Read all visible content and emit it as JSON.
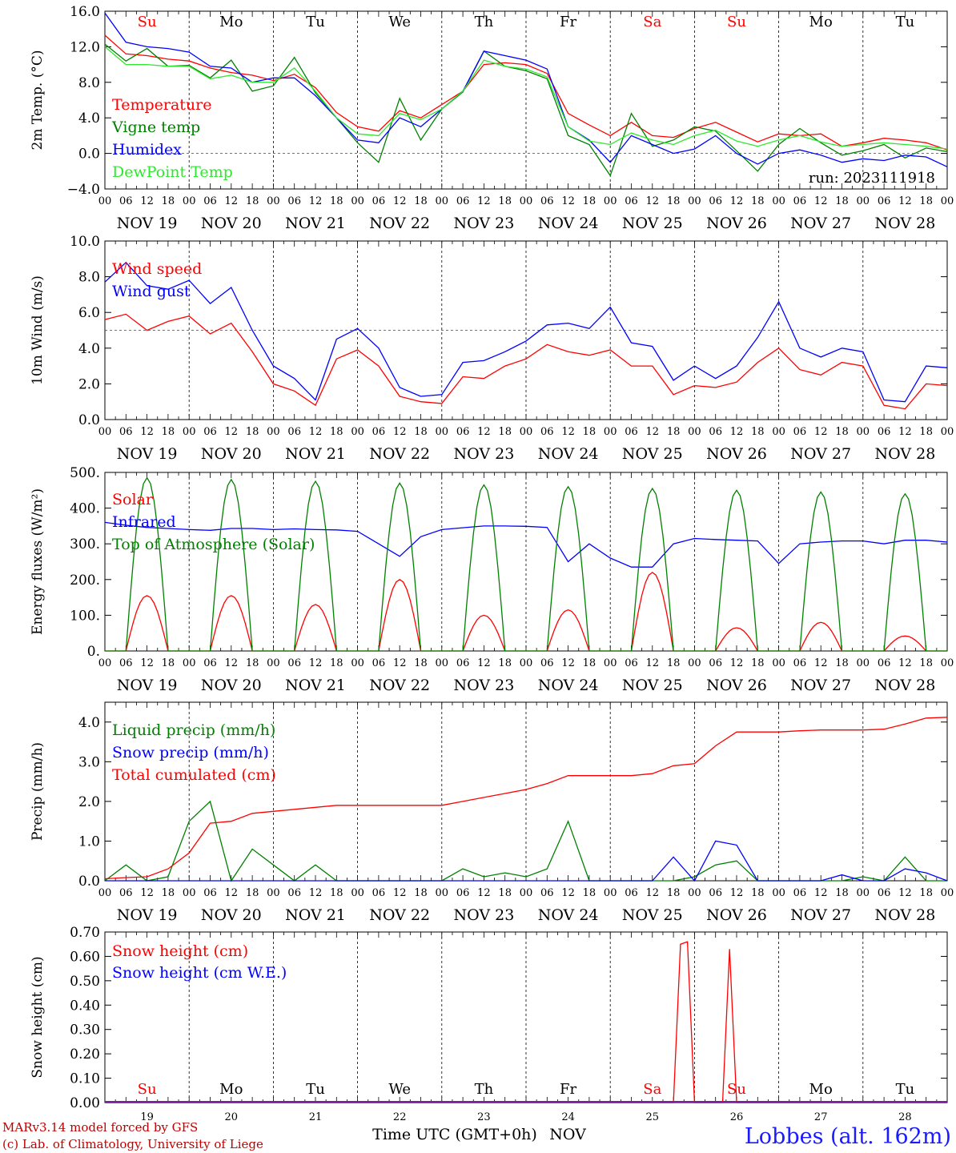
{
  "colors": {
    "red": "#ff0000",
    "green": "#008000",
    "blue": "#0000ff",
    "lightgreen": "#2ee82e",
    "purple": "#7a1fa2"
  },
  "days": [
    {
      "abbr": "Su",
      "date": "NOV 19",
      "num": "19",
      "weekend": true
    },
    {
      "abbr": "Mo",
      "date": "NOV 20",
      "num": "20",
      "weekend": false
    },
    {
      "abbr": "Tu",
      "date": "NOV 21",
      "num": "21",
      "weekend": false
    },
    {
      "abbr": "We",
      "date": "NOV 22",
      "num": "22",
      "weekend": false
    },
    {
      "abbr": "Th",
      "date": "NOV 23",
      "num": "23",
      "weekend": false
    },
    {
      "abbr": "Fr",
      "date": "NOV 24",
      "num": "24",
      "weekend": false
    },
    {
      "abbr": "Sa",
      "date": "NOV 25",
      "num": "25",
      "weekend": true
    },
    {
      "abbr": "Su",
      "date": "NOV 26",
      "num": "26",
      "weekend": true
    },
    {
      "abbr": "Mo",
      "date": "NOV 27",
      "num": "27",
      "weekend": false
    },
    {
      "abbr": "Tu",
      "date": "NOV 28",
      "num": "28",
      "weekend": false
    }
  ],
  "hour_labels": [
    "00",
    "06",
    "12",
    "18"
  ],
  "hour_end_label": "00",
  "x_title": "Time UTC (GMT+0h)",
  "x_month": "NOV",
  "station": "Lobbes (alt. 162m)",
  "run_label": "run: 2023111918",
  "footer": [
    "MARv3.14 model forced by GFS",
    "(c) Lab. of Climatology, University of Liege"
  ],
  "chart_data": [
    {
      "id": "temp",
      "type": "line",
      "ylabel": "2m Temp. (°C)",
      "ylim": [
        -4,
        16
      ],
      "yticks": [
        -4,
        0,
        4,
        8,
        12,
        16
      ],
      "ytick_labels": [
        "−4.0",
        "0.0",
        "4.0",
        "8.0",
        "12.0",
        "16.0"
      ],
      "hline": 0,
      "x_hours": [
        0,
        6,
        12,
        18,
        24,
        30,
        36,
        42,
        48,
        54,
        60,
        66,
        72,
        78,
        84,
        90,
        96,
        102,
        108,
        114,
        120,
        126,
        132,
        138,
        144,
        150,
        156,
        162,
        168,
        174,
        180,
        186,
        192,
        198,
        204,
        210,
        216,
        222,
        228,
        234,
        240
      ],
      "series": [
        {
          "name": "Temperature",
          "color": "#ff0000",
          "values": [
            13.3,
            11.2,
            11.0,
            10.6,
            10.4,
            9.6,
            9.1,
            8.8,
            8.2,
            8.9,
            7.4,
            4.6,
            3.0,
            2.5,
            4.8,
            4.0,
            5.5,
            7.0,
            10.0,
            10.2,
            10.0,
            9.0,
            4.5,
            3.2,
            2.0,
            3.5,
            2.0,
            1.8,
            2.8,
            3.5,
            2.4,
            1.3,
            2.2,
            2.0,
            2.2,
            0.8,
            1.2,
            1.7,
            1.5,
            1.2,
            0.4
          ]
        },
        {
          "name": "Vigne temp",
          "color": "#008000",
          "values": [
            12.3,
            10.4,
            11.8,
            9.8,
            9.9,
            8.5,
            10.5,
            7.0,
            7.6,
            10.8,
            6.8,
            4.0,
            1.2,
            -1.0,
            6.2,
            1.5,
            5.0,
            6.9,
            11.5,
            9.8,
            9.3,
            8.4,
            2.0,
            1.0,
            -2.5,
            4.5,
            0.8,
            1.5,
            3.0,
            2.5,
            0.3,
            -2.0,
            1.0,
            2.8,
            1.2,
            -0.2,
            0.3,
            1.0,
            -0.5,
            0.6,
            0.2
          ]
        },
        {
          "name": "Humidex",
          "color": "#0000ff",
          "values": [
            15.8,
            12.5,
            12.0,
            11.8,
            11.4,
            9.8,
            9.6,
            8.0,
            8.5,
            8.5,
            6.5,
            4.0,
            1.5,
            1.2,
            4.0,
            3.0,
            5.0,
            7.0,
            11.5,
            11.0,
            10.5,
            9.5,
            3.0,
            1.5,
            -1.0,
            2.0,
            1.0,
            0.0,
            0.5,
            2.0,
            0.0,
            -1.2,
            0.0,
            0.4,
            -0.2,
            -1.0,
            -0.6,
            -0.8,
            -0.2,
            -0.4,
            -1.5
          ]
        },
        {
          "name": "DewPoint Temp",
          "color": "#2ee82e",
          "values": [
            12.0,
            10.0,
            10.0,
            9.8,
            9.8,
            8.4,
            8.8,
            8.0,
            8.0,
            9.6,
            7.0,
            4.0,
            2.2,
            2.0,
            4.5,
            3.8,
            5.0,
            7.0,
            10.5,
            9.8,
            9.5,
            8.6,
            3.0,
            1.4,
            1.0,
            2.3,
            1.5,
            1.0,
            2.0,
            2.6,
            1.4,
            0.8,
            1.5,
            2.0,
            1.3,
            0.8,
            1.0,
            1.2,
            1.0,
            0.8,
            0.5
          ]
        }
      ]
    },
    {
      "id": "wind",
      "type": "line",
      "ylabel": "10m Wind (m/s)",
      "ylim": [
        0,
        10
      ],
      "yticks": [
        0,
        2,
        4,
        6,
        8,
        10
      ],
      "ytick_labels": [
        "0.0",
        "2.0",
        "4.0",
        "6.0",
        "8.0",
        "10.0"
      ],
      "hline": 5,
      "x_hours": [
        0,
        6,
        12,
        18,
        24,
        30,
        36,
        42,
        48,
        54,
        60,
        66,
        72,
        78,
        84,
        90,
        96,
        102,
        108,
        114,
        120,
        126,
        132,
        138,
        144,
        150,
        156,
        162,
        168,
        174,
        180,
        186,
        192,
        198,
        204,
        210,
        216,
        222,
        228,
        234,
        240
      ],
      "series": [
        {
          "name": "Wind speed",
          "color": "#ff0000",
          "values": [
            5.6,
            5.9,
            5.0,
            5.5,
            5.8,
            4.8,
            5.4,
            3.8,
            2.0,
            1.6,
            0.8,
            3.4,
            3.9,
            3.0,
            1.3,
            1.0,
            0.9,
            2.4,
            2.3,
            3.0,
            3.4,
            4.2,
            3.8,
            3.6,
            3.9,
            3.0,
            3.0,
            1.4,
            1.9,
            1.8,
            2.1,
            3.2,
            4.0,
            2.8,
            2.5,
            3.2,
            3.0,
            0.8,
            0.6,
            2.0,
            1.9
          ]
        },
        {
          "name": "Wind gust",
          "color": "#0000ff",
          "values": [
            7.7,
            8.8,
            7.5,
            7.3,
            7.8,
            6.5,
            7.4,
            5.0,
            3.0,
            2.3,
            1.1,
            4.5,
            5.1,
            4.0,
            1.8,
            1.3,
            1.4,
            3.2,
            3.3,
            3.8,
            4.4,
            5.3,
            5.4,
            5.1,
            6.3,
            4.3,
            4.1,
            2.2,
            3.0,
            2.3,
            3.0,
            4.6,
            6.6,
            4.0,
            3.5,
            4.0,
            3.8,
            1.1,
            1.0,
            3.0,
            2.9
          ]
        }
      ]
    },
    {
      "id": "energy",
      "type": "line",
      "ylabel": "Energy fluxes (W/m²)",
      "ylim": [
        0,
        500
      ],
      "yticks": [
        0,
        100,
        200,
        300,
        400,
        500
      ],
      "ytick_labels": [
        "0.",
        "100.",
        "200.",
        "300.",
        "400.",
        "500."
      ],
      "x_hours": [
        0,
        6,
        12,
        18,
        24,
        30,
        36,
        42,
        48,
        54,
        60,
        66,
        72,
        78,
        84,
        90,
        96,
        102,
        108,
        114,
        120,
        126,
        132,
        138,
        144,
        150,
        156,
        162,
        168,
        174,
        180,
        186,
        192,
        198,
        204,
        210,
        216,
        222,
        228,
        234,
        240
      ],
      "series": [
        {
          "name": "Solar",
          "color": "#ff0000",
          "peaks": [
            {
              "h": 12,
              "v": 155
            },
            {
              "h": 36,
              "v": 155
            },
            {
              "h": 60,
              "v": 130
            },
            {
              "h": 84,
              "v": 200
            },
            {
              "h": 108,
              "v": 100
            },
            {
              "h": 132,
              "v": 115
            },
            {
              "h": 156,
              "v": 220
            },
            {
              "h": 180,
              "v": 65
            },
            {
              "h": 204,
              "v": 80
            },
            {
              "h": 228,
              "v": 42
            }
          ]
        },
        {
          "name": "Infrared",
          "color": "#0000ff",
          "values": [
            360,
            352,
            346,
            343,
            340,
            338,
            343,
            343,
            340,
            342,
            340,
            339,
            335,
            300,
            265,
            320,
            340,
            345,
            350,
            350,
            349,
            346,
            250,
            300,
            260,
            235,
            235,
            300,
            315,
            312,
            310,
            308,
            245,
            300,
            305,
            308,
            308,
            300,
            310,
            310,
            305
          ]
        },
        {
          "name": "Top of Atmosphere (Solar)",
          "color": "#008000",
          "peaks": [
            {
              "h": 12,
              "v": 485
            },
            {
              "h": 36,
              "v": 480
            },
            {
              "h": 60,
              "v": 475
            },
            {
              "h": 84,
              "v": 470
            },
            {
              "h": 108,
              "v": 465
            },
            {
              "h": 132,
              "v": 460
            },
            {
              "h": 156,
              "v": 455
            },
            {
              "h": 180,
              "v": 450
            },
            {
              "h": 204,
              "v": 445
            },
            {
              "h": 228,
              "v": 440
            }
          ]
        }
      ]
    },
    {
      "id": "precip",
      "type": "line",
      "ylabel": "Precip (mm/h)",
      "ylim": [
        0,
        4.5
      ],
      "yticks": [
        0,
        1,
        2,
        3,
        4
      ],
      "ytick_labels": [
        "0.0",
        "1.0",
        "2.0",
        "3.0",
        "4.0"
      ],
      "x_hours": [
        0,
        6,
        12,
        18,
        24,
        30,
        36,
        42,
        48,
        54,
        60,
        66,
        72,
        78,
        84,
        90,
        96,
        102,
        108,
        114,
        120,
        126,
        132,
        138,
        144,
        150,
        156,
        162,
        168,
        174,
        180,
        186,
        192,
        198,
        204,
        210,
        216,
        222,
        228,
        234,
        240
      ],
      "series": [
        {
          "name": "Liquid precip (mm/h)",
          "color": "#008000",
          "values": [
            0,
            0.4,
            0,
            0.1,
            1.5,
            2.0,
            0,
            0.8,
            0.4,
            0,
            0.4,
            0,
            0,
            0,
            0,
            0,
            0,
            0.3,
            0.1,
            0.2,
            0.1,
            0.3,
            1.5,
            0,
            0,
            0,
            0,
            0,
            0.1,
            0.4,
            0.5,
            0,
            0,
            0,
            0,
            0,
            0.1,
            0,
            0.6,
            0,
            0
          ]
        },
        {
          "name": "Snow precip (mm/h)",
          "color": "#0000ff",
          "values": [
            0,
            0,
            0,
            0,
            0,
            0,
            0,
            0,
            0,
            0,
            0,
            0,
            0,
            0,
            0,
            0,
            0,
            0,
            0,
            0,
            0,
            0,
            0,
            0,
            0,
            0,
            0,
            0.6,
            0,
            1.0,
            0.9,
            0,
            0,
            0,
            0,
            0.15,
            0,
            0,
            0.3,
            0.2,
            0
          ]
        },
        {
          "name": "Total cumulated (cm)",
          "color": "#ff0000",
          "values": [
            0.05,
            0.08,
            0.1,
            0.3,
            0.7,
            1.45,
            1.5,
            1.7,
            1.75,
            1.8,
            1.85,
            1.9,
            1.9,
            1.9,
            1.9,
            1.9,
            1.9,
            2.0,
            2.1,
            2.2,
            2.3,
            2.45,
            2.65,
            2.65,
            2.65,
            2.65,
            2.7,
            2.9,
            2.95,
            3.4,
            3.75,
            3.75,
            3.75,
            3.78,
            3.8,
            3.8,
            3.8,
            3.82,
            3.95,
            4.1,
            4.12
          ]
        }
      ]
    },
    {
      "id": "snow",
      "type": "line",
      "ylabel": "Snow height (cm)",
      "ylim": [
        0,
        0.7
      ],
      "yticks": [
        0,
        0.1,
        0.2,
        0.3,
        0.4,
        0.5,
        0.6,
        0.7
      ],
      "ytick_labels": [
        "0.00",
        "0.10",
        "0.20",
        "0.30",
        "0.40",
        "0.50",
        "0.60",
        "0.70"
      ],
      "x_hours": [
        0,
        24,
        48,
        72,
        96,
        120,
        144,
        156,
        158,
        160,
        162,
        164,
        166,
        168,
        170,
        172,
        174,
        176,
        178,
        180,
        240
      ],
      "series": [
        {
          "name": "Snow height (cm)",
          "color": "#ff0000",
          "values": [
            0,
            0,
            0,
            0,
            0,
            0,
            0,
            0,
            0,
            0,
            0,
            0.65,
            0.66,
            0,
            0,
            0,
            0,
            0,
            0.63,
            0,
            0
          ]
        },
        {
          "name": "Snow height (cm W.E.)",
          "color": "#0000ff",
          "values": [
            0,
            0,
            0,
            0,
            0,
            0,
            0,
            0,
            0,
            0,
            0,
            0,
            0,
            0,
            0,
            0,
            0,
            0,
            0,
            0,
            0
          ]
        }
      ]
    }
  ]
}
